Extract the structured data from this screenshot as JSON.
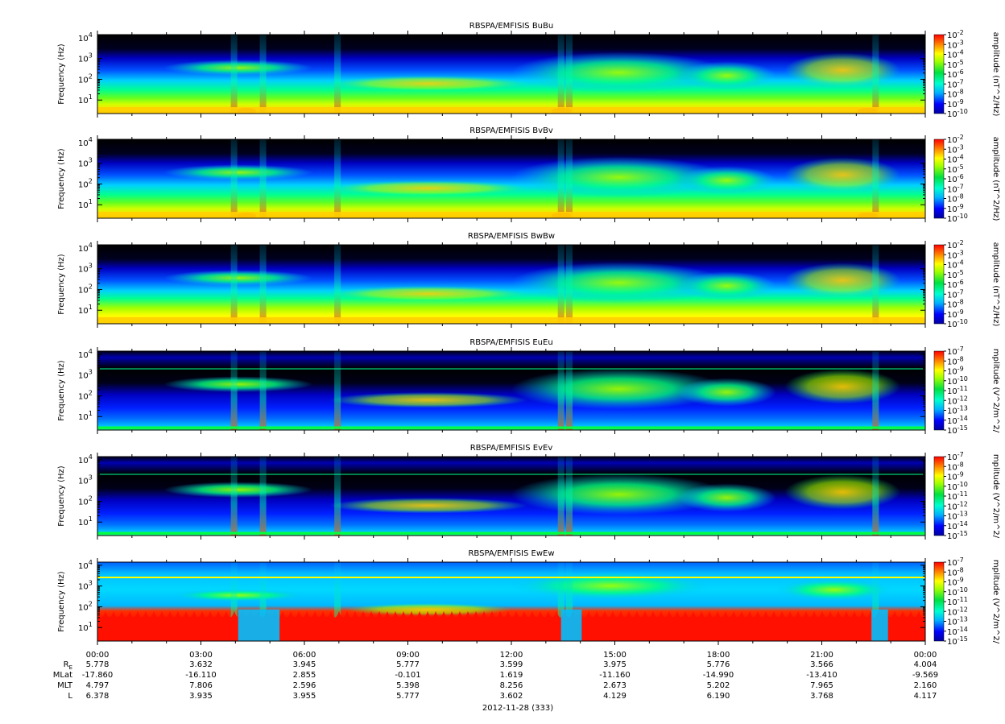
{
  "chart_data": {
    "type": "heatmap",
    "date_label": "2012-11-28 (333)",
    "x_ticks": [
      "00:00",
      "03:00",
      "06:00",
      "09:00",
      "12:00",
      "15:00",
      "18:00",
      "21:00",
      "00:00"
    ],
    "y_label": "Frequency (Hz)",
    "y_scale": "log",
    "y_ticks": [
      {
        "base": "10",
        "exp": "1"
      },
      {
        "base": "10",
        "exp": "2"
      },
      {
        "base": "10",
        "exp": "3"
      },
      {
        "base": "10",
        "exp": "4"
      }
    ],
    "panels": [
      {
        "title": "RBSPA/EMFISIS  BuBu",
        "cb_label": "amplitude (nT^2/Hz)",
        "cb_exps": [
          "-2",
          "-3",
          "-4",
          "-5",
          "-6",
          "-7",
          "-8",
          "-9",
          "-10"
        ],
        "kind": "B"
      },
      {
        "title": "RBSPA/EMFISIS  BvBv",
        "cb_label": "amplitude (nT^2/Hz)",
        "cb_exps": [
          "-2",
          "-3",
          "-4",
          "-5",
          "-6",
          "-7",
          "-8",
          "-9",
          "-10"
        ],
        "kind": "B"
      },
      {
        "title": "RBSPA/EMFISIS  BwBw",
        "cb_label": "amplitude (nT^2/Hz)",
        "cb_exps": [
          "-2",
          "-3",
          "-4",
          "-5",
          "-6",
          "-7",
          "-8",
          "-9",
          "-10"
        ],
        "kind": "Bw"
      },
      {
        "title": "RBSPA/EMFISIS  EuEu",
        "cb_label": "mplitude (V^2/m^2/",
        "cb_exps": [
          "-7",
          "-8",
          "-9",
          "-10",
          "-11",
          "-12",
          "-13",
          "-14",
          "-15"
        ],
        "kind": "E"
      },
      {
        "title": "RBSPA/EMFISIS  EvEv",
        "cb_label": "mplitude (V^2/m^2/",
        "cb_exps": [
          "-7",
          "-8",
          "-9",
          "-10",
          "-11",
          "-12",
          "-13",
          "-14",
          "-15"
        ],
        "kind": "E"
      },
      {
        "title": "RBSPA/EMFISIS  EwEw",
        "cb_label": "mplitude (V^2/m^2/",
        "cb_exps": [
          "-7",
          "-8",
          "-9",
          "-10",
          "-11",
          "-12",
          "-13",
          "-14",
          "-15"
        ],
        "kind": "Ew"
      }
    ],
    "ephemeris": [
      {
        "label": "R",
        "sub": "E",
        "values": [
          "5.778",
          "3.632",
          "3.945",
          "5.777",
          "3.599",
          "3.975",
          "5.776",
          "3.566",
          "4.004"
        ]
      },
      {
        "label": "MLat",
        "sub": "",
        "values": [
          "-17.860",
          "-16.110",
          "2.855",
          "-0.101",
          "1.619",
          "-11.160",
          "-14.990",
          "-13.410",
          "-9.569"
        ]
      },
      {
        "label": "MLT",
        "sub": "",
        "values": [
          "4.797",
          "7.806",
          "2.596",
          "5.398",
          "8.256",
          "2.673",
          "5.202",
          "7.965",
          "2.160"
        ]
      },
      {
        "label": "L",
        "sub": "",
        "values": [
          "6.378",
          "3.935",
          "3.955",
          "5.777",
          "3.602",
          "4.129",
          "6.190",
          "3.768",
          "4.117"
        ]
      }
    ]
  }
}
